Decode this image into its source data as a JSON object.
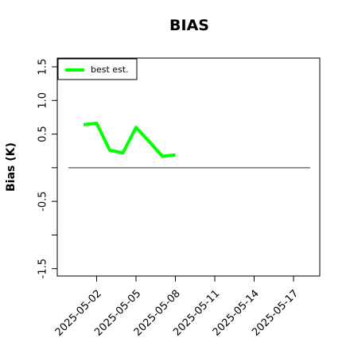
{
  "chart_data": {
    "type": "line",
    "title": "BIAS",
    "y_label": "Bias (K)",
    "x": [
      "2025-05-01",
      "2025-05-02",
      "2025-05-03",
      "2025-05-04",
      "2025-05-05",
      "2025-05-06",
      "2025-05-07",
      "2025-05-08"
    ],
    "series": [
      {
        "name": "best est.",
        "color": "#00ff00",
        "values": [
          0.64,
          0.66,
          0.26,
          0.22,
          0.6,
          0.39,
          0.17,
          0.19
        ]
      }
    ],
    "xlim": [
      "2025-04-29",
      "2025-05-19"
    ],
    "xticks": [
      "2025-05-02",
      "2025-05-05",
      "2025-05-08",
      "2025-05-11",
      "2025-05-14",
      "2025-05-17"
    ],
    "ylim": [
      -1.61,
      1.63
    ],
    "yticks": [
      -1.5,
      {
        "value": -1.0,
        "label": null
      },
      -0.5,
      {
        "value": 0,
        "label": null
      },
      0.5,
      {
        "value": 1.0,
        "label": "1.0"
      },
      1.5
    ],
    "hline": 0,
    "legend": "top-left"
  }
}
